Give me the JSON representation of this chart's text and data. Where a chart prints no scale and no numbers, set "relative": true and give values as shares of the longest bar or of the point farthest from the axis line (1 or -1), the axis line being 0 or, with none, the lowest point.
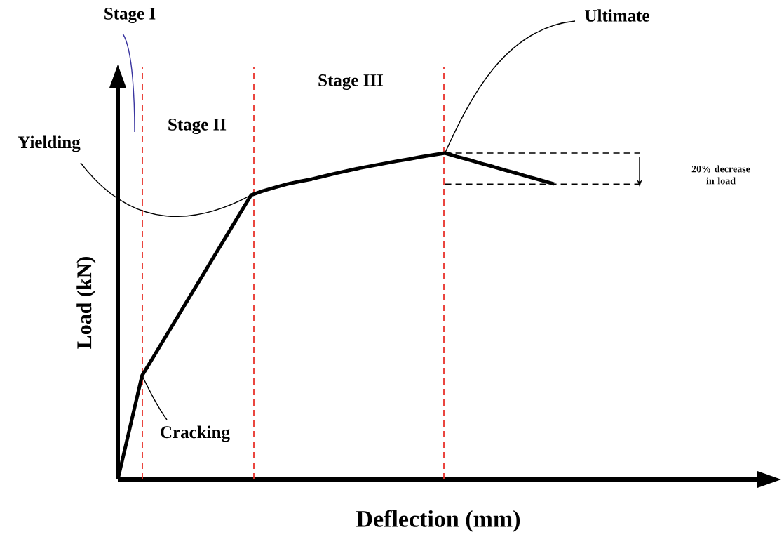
{
  "chart_data": {
    "type": "line",
    "relative": true,
    "xlabel": "Deflection (mm)",
    "ylabel": "Load (kN)",
    "categories": [
      null,
      null,
      null,
      null,
      null,
      null,
      null,
      null,
      null,
      null,
      null,
      null,
      null,
      null,
      null,
      null,
      null,
      null,
      null,
      null,
      null,
      null,
      null,
      null,
      null,
      null,
      null,
      null,
      null,
      null,
      null,
      null,
      null,
      null,
      null,
      null,
      null
    ],
    "series": [
      {
        "color": "#000000",
        "values": [
          0,
          0.159,
          0.318,
          0.379,
          0.441,
          0.502,
          0.564,
          0.625,
          0.687,
          0.748,
          0.81,
          0.871,
          0.884,
          0.895,
          0.905,
          0.913,
          0.92,
          0.929,
          0.938,
          0.946,
          0.954,
          0.961,
          0.968,
          0.975,
          0.981,
          0.988,
          0.994,
          1,
          0.989,
          0.979,
          0.968,
          0.958,
          0.947,
          0.937,
          0.926,
          0.916,
          0.905
        ]
      }
    ],
    "ref_lines": [
      {
        "axis": "y",
        "value": 1,
        "color": "#000000",
        "line_style": "dashed"
      },
      {
        "axis": "y",
        "value": 0.905,
        "color": "#000000",
        "line_style": "dashed"
      }
    ],
    "annotations": [
      "Stage I",
      "Stage II",
      "Stage III",
      "Yielding",
      "Cracking",
      "Ultimate",
      "20% decrease in load"
    ],
    "marker": "none",
    "line_style": "solid"
  }
}
